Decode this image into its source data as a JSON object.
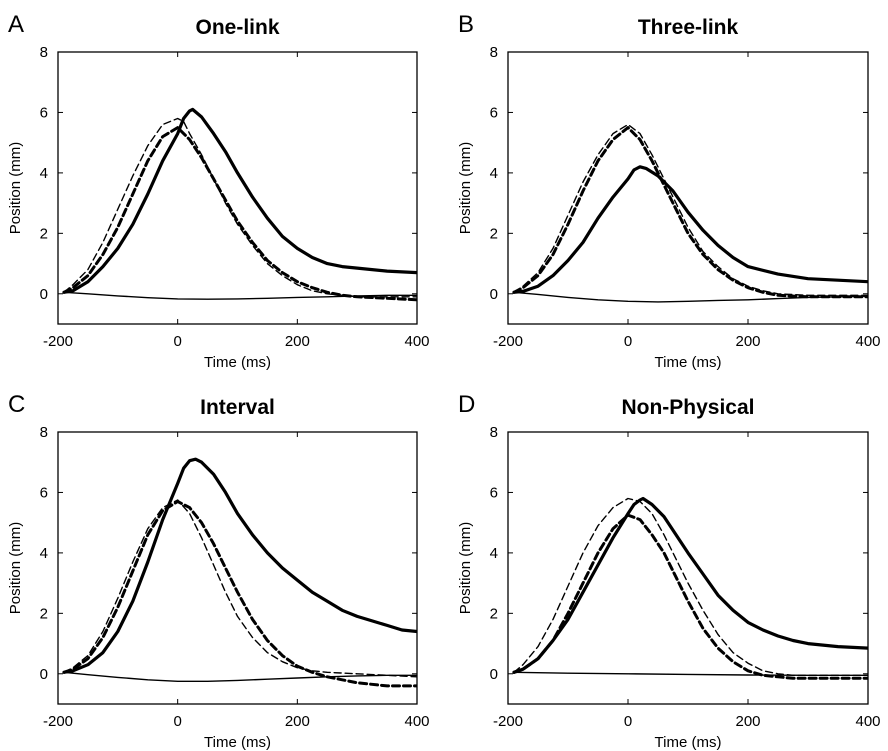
{
  "chart_data": [
    {
      "type": "line",
      "panel_letter": "A",
      "title": "One-link",
      "xlabel": "Time (ms)",
      "ylabel": "Position (mm)",
      "xlim": [
        -200,
        400
      ],
      "ylim": [
        -1,
        8
      ],
      "xticks": [
        -200,
        0,
        200,
        400
      ],
      "yticks": [
        0,
        2,
        4,
        6,
        8
      ],
      "grid": false,
      "series": [
        {
          "style": "solid-thick",
          "x": [
            -190,
            -175,
            -150,
            -125,
            -100,
            -75,
            -50,
            -25,
            0,
            10,
            20,
            25,
            40,
            60,
            80,
            100,
            125,
            150,
            175,
            200,
            225,
            250,
            275,
            300,
            350,
            400
          ],
          "y": [
            0.05,
            0.1,
            0.4,
            0.9,
            1.5,
            2.3,
            3.3,
            4.4,
            5.3,
            5.8,
            6.05,
            6.1,
            5.85,
            5.3,
            4.7,
            4.0,
            3.2,
            2.5,
            1.9,
            1.5,
            1.2,
            1.0,
            0.9,
            0.85,
            0.75,
            0.7
          ]
        },
        {
          "style": "solid-thin",
          "x": [
            -190,
            -150,
            -100,
            -50,
            0,
            50,
            100,
            150,
            200,
            250,
            300,
            350,
            400
          ],
          "y": [
            0.05,
            0.0,
            -0.07,
            -0.13,
            -0.17,
            -0.18,
            -0.17,
            -0.15,
            -0.12,
            -0.1,
            -0.07,
            -0.05,
            -0.05
          ]
        },
        {
          "style": "dashed-thick",
          "x": [
            -190,
            -175,
            -150,
            -125,
            -100,
            -75,
            -50,
            -25,
            0,
            20,
            40,
            60,
            80,
            100,
            125,
            150,
            175,
            200,
            225,
            250,
            275,
            300,
            350,
            400
          ],
          "y": [
            0.05,
            0.2,
            0.6,
            1.3,
            2.2,
            3.3,
            4.4,
            5.2,
            5.5,
            5.1,
            4.5,
            3.8,
            3.1,
            2.4,
            1.7,
            1.1,
            0.7,
            0.4,
            0.2,
            0.05,
            -0.05,
            -0.1,
            -0.15,
            -0.2
          ]
        },
        {
          "style": "dashed-thin",
          "x": [
            -190,
            -175,
            -150,
            -125,
            -100,
            -75,
            -50,
            -25,
            0,
            10,
            20,
            40,
            60,
            80,
            100,
            125,
            150,
            175,
            200,
            225,
            250,
            275,
            300,
            350,
            400
          ],
          "y": [
            0.05,
            0.3,
            0.8,
            1.7,
            2.8,
            3.9,
            4.9,
            5.6,
            5.8,
            5.7,
            5.3,
            4.6,
            3.8,
            3.0,
            2.3,
            1.6,
            1.0,
            0.6,
            0.3,
            0.1,
            0.0,
            -0.05,
            -0.1,
            -0.1,
            -0.1
          ]
        }
      ]
    },
    {
      "type": "line",
      "panel_letter": "B",
      "title": "Three-link",
      "xlabel": "Time (ms)",
      "ylabel": "Position (mm)",
      "xlim": [
        -200,
        400
      ],
      "ylim": [
        -1,
        8
      ],
      "xticks": [
        -200,
        0,
        200,
        400
      ],
      "yticks": [
        0,
        2,
        4,
        6,
        8
      ],
      "grid": false,
      "series": [
        {
          "style": "solid-thick",
          "x": [
            -190,
            -175,
            -150,
            -125,
            -100,
            -75,
            -50,
            -25,
            0,
            10,
            20,
            30,
            50,
            75,
            100,
            125,
            150,
            175,
            200,
            250,
            300,
            350,
            400
          ],
          "y": [
            0.05,
            0.08,
            0.25,
            0.6,
            1.1,
            1.7,
            2.5,
            3.2,
            3.8,
            4.1,
            4.2,
            4.15,
            3.9,
            3.4,
            2.7,
            2.1,
            1.6,
            1.2,
            0.9,
            0.65,
            0.5,
            0.45,
            0.4
          ]
        },
        {
          "style": "solid-thin",
          "x": [
            -190,
            -150,
            -100,
            -50,
            0,
            50,
            100,
            150,
            200,
            250,
            300,
            350,
            400
          ],
          "y": [
            0.05,
            -0.02,
            -0.12,
            -0.2,
            -0.25,
            -0.27,
            -0.25,
            -0.22,
            -0.2,
            -0.16,
            -0.12,
            -0.1,
            -0.08
          ]
        },
        {
          "style": "dashed-thick",
          "x": [
            -190,
            -175,
            -150,
            -125,
            -100,
            -75,
            -50,
            -25,
            0,
            20,
            40,
            60,
            80,
            100,
            125,
            150,
            175,
            200,
            225,
            250,
            300,
            350,
            400
          ],
          "y": [
            0.05,
            0.2,
            0.6,
            1.3,
            2.3,
            3.4,
            4.4,
            5.1,
            5.5,
            5.1,
            4.4,
            3.6,
            2.8,
            2.0,
            1.3,
            0.8,
            0.45,
            0.2,
            0.05,
            -0.05,
            -0.1,
            -0.1,
            -0.1
          ]
        },
        {
          "style": "dashed-thin",
          "x": [
            -190,
            -175,
            -150,
            -125,
            -100,
            -75,
            -50,
            -25,
            0,
            20,
            40,
            60,
            80,
            100,
            125,
            150,
            175,
            200,
            225,
            250,
            300,
            350,
            400
          ],
          "y": [
            0.05,
            0.25,
            0.7,
            1.5,
            2.6,
            3.7,
            4.6,
            5.3,
            5.6,
            5.3,
            4.6,
            3.8,
            3.0,
            2.2,
            1.4,
            0.9,
            0.5,
            0.25,
            0.1,
            0.0,
            -0.05,
            -0.05,
            -0.05
          ]
        }
      ]
    },
    {
      "type": "line",
      "panel_letter": "C",
      "title": "Interval",
      "xlabel": "Time (ms)",
      "ylabel": "Position (mm)",
      "xlim": [
        -200,
        400
      ],
      "ylim": [
        -1,
        8
      ],
      "xticks": [
        -200,
        0,
        200,
        400
      ],
      "yticks": [
        0,
        2,
        4,
        6,
        8
      ],
      "grid": false,
      "series": [
        {
          "style": "solid-thick",
          "x": [
            -190,
            -175,
            -150,
            -125,
            -100,
            -75,
            -50,
            -25,
            0,
            10,
            20,
            30,
            40,
            60,
            80,
            100,
            125,
            150,
            175,
            200,
            225,
            250,
            275,
            300,
            325,
            350,
            375,
            400
          ],
          "y": [
            0.05,
            0.1,
            0.3,
            0.7,
            1.4,
            2.4,
            3.7,
            5.1,
            6.3,
            6.8,
            7.05,
            7.1,
            7.0,
            6.6,
            6.0,
            5.3,
            4.6,
            4.0,
            3.5,
            3.1,
            2.7,
            2.4,
            2.1,
            1.9,
            1.75,
            1.6,
            1.45,
            1.4
          ]
        },
        {
          "style": "solid-thin",
          "x": [
            -190,
            -150,
            -100,
            -50,
            0,
            50,
            100,
            150,
            200,
            250,
            300,
            350,
            400
          ],
          "y": [
            0.05,
            -0.03,
            -0.12,
            -0.2,
            -0.25,
            -0.25,
            -0.22,
            -0.18,
            -0.14,
            -0.1,
            -0.07,
            -0.05,
            -0.05
          ]
        },
        {
          "style": "dashed-thick",
          "x": [
            -190,
            -175,
            -150,
            -125,
            -100,
            -75,
            -50,
            -25,
            0,
            20,
            40,
            60,
            80,
            100,
            125,
            150,
            175,
            200,
            225,
            250,
            275,
            300,
            350,
            400
          ],
          "y": [
            0.05,
            0.15,
            0.5,
            1.2,
            2.2,
            3.4,
            4.6,
            5.4,
            5.7,
            5.5,
            5.0,
            4.3,
            3.5,
            2.7,
            1.8,
            1.1,
            0.6,
            0.25,
            0.05,
            -0.1,
            -0.2,
            -0.3,
            -0.4,
            -0.4
          ]
        },
        {
          "style": "dashed-thin",
          "x": [
            -190,
            -175,
            -150,
            -125,
            -100,
            -75,
            -50,
            -25,
            0,
            20,
            40,
            60,
            80,
            100,
            125,
            150,
            175,
            200,
            225,
            250,
            300,
            350,
            400
          ],
          "y": [
            0.05,
            0.2,
            0.6,
            1.4,
            2.5,
            3.7,
            4.8,
            5.5,
            5.75,
            5.3,
            4.5,
            3.6,
            2.7,
            1.9,
            1.2,
            0.7,
            0.4,
            0.2,
            0.1,
            0.05,
            0.0,
            -0.05,
            -0.1
          ]
        }
      ]
    },
    {
      "type": "line",
      "panel_letter": "D",
      "title": "Non-Physical",
      "xlabel": "Time (ms)",
      "ylabel": "Position (mm)",
      "xlim": [
        -200,
        400
      ],
      "ylim": [
        -1,
        8
      ],
      "xticks": [
        -200,
        0,
        200,
        400
      ],
      "yticks": [
        0,
        2,
        4,
        6,
        8
      ],
      "grid": false,
      "series": [
        {
          "style": "solid-thick",
          "x": [
            -190,
            -175,
            -150,
            -125,
            -100,
            -75,
            -50,
            -25,
            0,
            10,
            20,
            25,
            40,
            60,
            80,
            100,
            125,
            150,
            175,
            200,
            225,
            250,
            275,
            300,
            350,
            400
          ],
          "y": [
            0.05,
            0.15,
            0.5,
            1.1,
            1.8,
            2.7,
            3.6,
            4.5,
            5.3,
            5.6,
            5.75,
            5.8,
            5.6,
            5.2,
            4.6,
            4.0,
            3.3,
            2.6,
            2.1,
            1.7,
            1.45,
            1.25,
            1.1,
            1.0,
            0.9,
            0.85
          ]
        },
        {
          "style": "solid-thin",
          "x": [
            -190,
            -100,
            0,
            100,
            200,
            300,
            400
          ],
          "y": [
            0.05,
            0.02,
            0.0,
            -0.02,
            -0.04,
            -0.05,
            -0.05
          ]
        },
        {
          "style": "dashed-thick",
          "x": [
            -190,
            -175,
            -150,
            -125,
            -100,
            -75,
            -50,
            -25,
            0,
            20,
            40,
            60,
            80,
            100,
            125,
            150,
            175,
            200,
            225,
            250,
            275,
            300,
            350,
            400
          ],
          "y": [
            0.05,
            0.15,
            0.5,
            1.1,
            2.0,
            3.0,
            4.0,
            4.8,
            5.25,
            5.1,
            4.6,
            4.0,
            3.2,
            2.4,
            1.5,
            0.85,
            0.4,
            0.1,
            -0.05,
            -0.1,
            -0.15,
            -0.15,
            -0.15,
            -0.15
          ]
        },
        {
          "style": "dashed-thin",
          "x": [
            -190,
            -175,
            -150,
            -125,
            -100,
            -75,
            -50,
            -25,
            0,
            20,
            40,
            60,
            80,
            100,
            125,
            150,
            175,
            200,
            225,
            250,
            275,
            300,
            350,
            400
          ],
          "y": [
            0.05,
            0.3,
            0.9,
            1.8,
            2.9,
            4.0,
            4.9,
            5.5,
            5.8,
            5.7,
            5.3,
            4.6,
            3.8,
            3.0,
            2.1,
            1.3,
            0.7,
            0.35,
            0.1,
            0.0,
            -0.05,
            -0.05,
            -0.05,
            -0.05
          ]
        }
      ]
    }
  ]
}
